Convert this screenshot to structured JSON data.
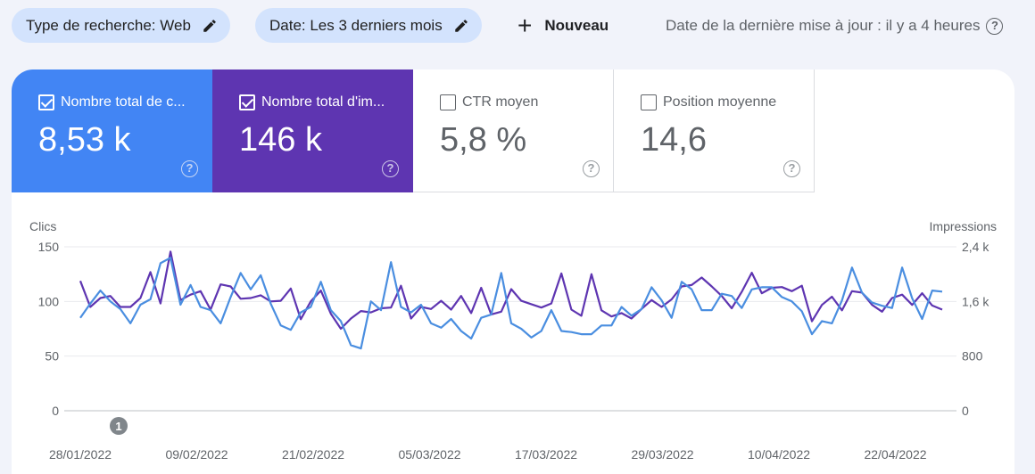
{
  "toolbar": {
    "filter_type": "Type de recherche: Web",
    "filter_date": "Date: Les 3 derniers mois",
    "new_label": "Nouveau",
    "last_update": "Date de la dernière mise à jour : il y a 4 heures"
  },
  "cards": [
    {
      "label": "Nombre total de c...",
      "value": "8,53 k",
      "checked": true
    },
    {
      "label": "Nombre total d'im...",
      "value": "146 k",
      "checked": true
    },
    {
      "label": "CTR moyen",
      "value": "5,8 %",
      "checked": false
    },
    {
      "label": "Position moyenne",
      "value": "14,6",
      "checked": false
    }
  ],
  "colors": {
    "clicks": "#4a8ee0",
    "impressions": "#5e35b1",
    "card_clicks": "#4285f4",
    "card_impressions": "#5e35b1"
  },
  "chart_data": {
    "type": "line",
    "left_axis_label": "Clics",
    "right_axis_label": "Impressions",
    "yleft_ticks": [
      "150",
      "100",
      "50",
      "0"
    ],
    "yright_ticks": [
      "2,4 k",
      "1,6 k",
      "800",
      "0"
    ],
    "yleft_range": [
      0,
      150
    ],
    "yright_range": [
      0,
      2400
    ],
    "x_tick_labels": [
      "28/01/2022",
      "09/02/2022",
      "21/02/2022",
      "05/03/2022",
      "17/03/2022",
      "29/03/2022",
      "10/04/2022",
      "22/04/2022"
    ],
    "annotation": "1",
    "x_start": "2022-01-28",
    "grid": true,
    "series": [
      {
        "name": "Nombre total de clics",
        "axis": "left",
        "values": [
          85,
          98,
          110,
          100,
          93,
          80,
          97,
          102,
          135,
          140,
          97,
          115,
          95,
          92,
          80,
          104,
          126,
          111,
          124,
          98,
          78,
          74,
          90,
          95,
          118,
          92,
          82,
          60,
          57,
          100,
          92,
          136,
          95,
          90,
          97,
          80,
          76,
          84,
          73,
          66,
          85,
          88,
          126,
          80,
          75,
          67,
          73,
          92,
          73,
          72,
          70,
          70,
          78,
          78,
          95,
          87,
          93,
          113,
          101,
          85,
          118,
          111,
          92,
          92,
          107,
          105,
          94,
          111,
          113,
          113,
          104,
          100,
          91,
          70,
          82,
          80,
          101,
          131,
          108,
          99,
          96,
          94,
          131,
          103,
          84,
          110,
          109
        ]
      },
      {
        "name": "Nombre total d'impressions",
        "axis": "right",
        "values": [
          1900,
          1520,
          1650,
          1680,
          1520,
          1520,
          1650,
          2030,
          1570,
          2330,
          1620,
          1700,
          1750,
          1480,
          1850,
          1820,
          1640,
          1650,
          1690,
          1600,
          1610,
          1790,
          1340,
          1600,
          1760,
          1420,
          1200,
          1350,
          1460,
          1440,
          1500,
          1510,
          1830,
          1350,
          1520,
          1490,
          1610,
          1480,
          1680,
          1430,
          1800,
          1410,
          1450,
          1780,
          1610,
          1560,
          1510,
          1570,
          2010,
          1480,
          1390,
          2000,
          1470,
          1380,
          1430,
          1350,
          1490,
          1620,
          1520,
          1630,
          1820,
          1840,
          1950,
          1820,
          1680,
          1500,
          1740,
          2020,
          1720,
          1800,
          1810,
          1750,
          1830,
          1310,
          1550,
          1670,
          1470,
          1750,
          1730,
          1550,
          1450,
          1650,
          1700,
          1550,
          1720,
          1540,
          1480
        ]
      }
    ]
  }
}
